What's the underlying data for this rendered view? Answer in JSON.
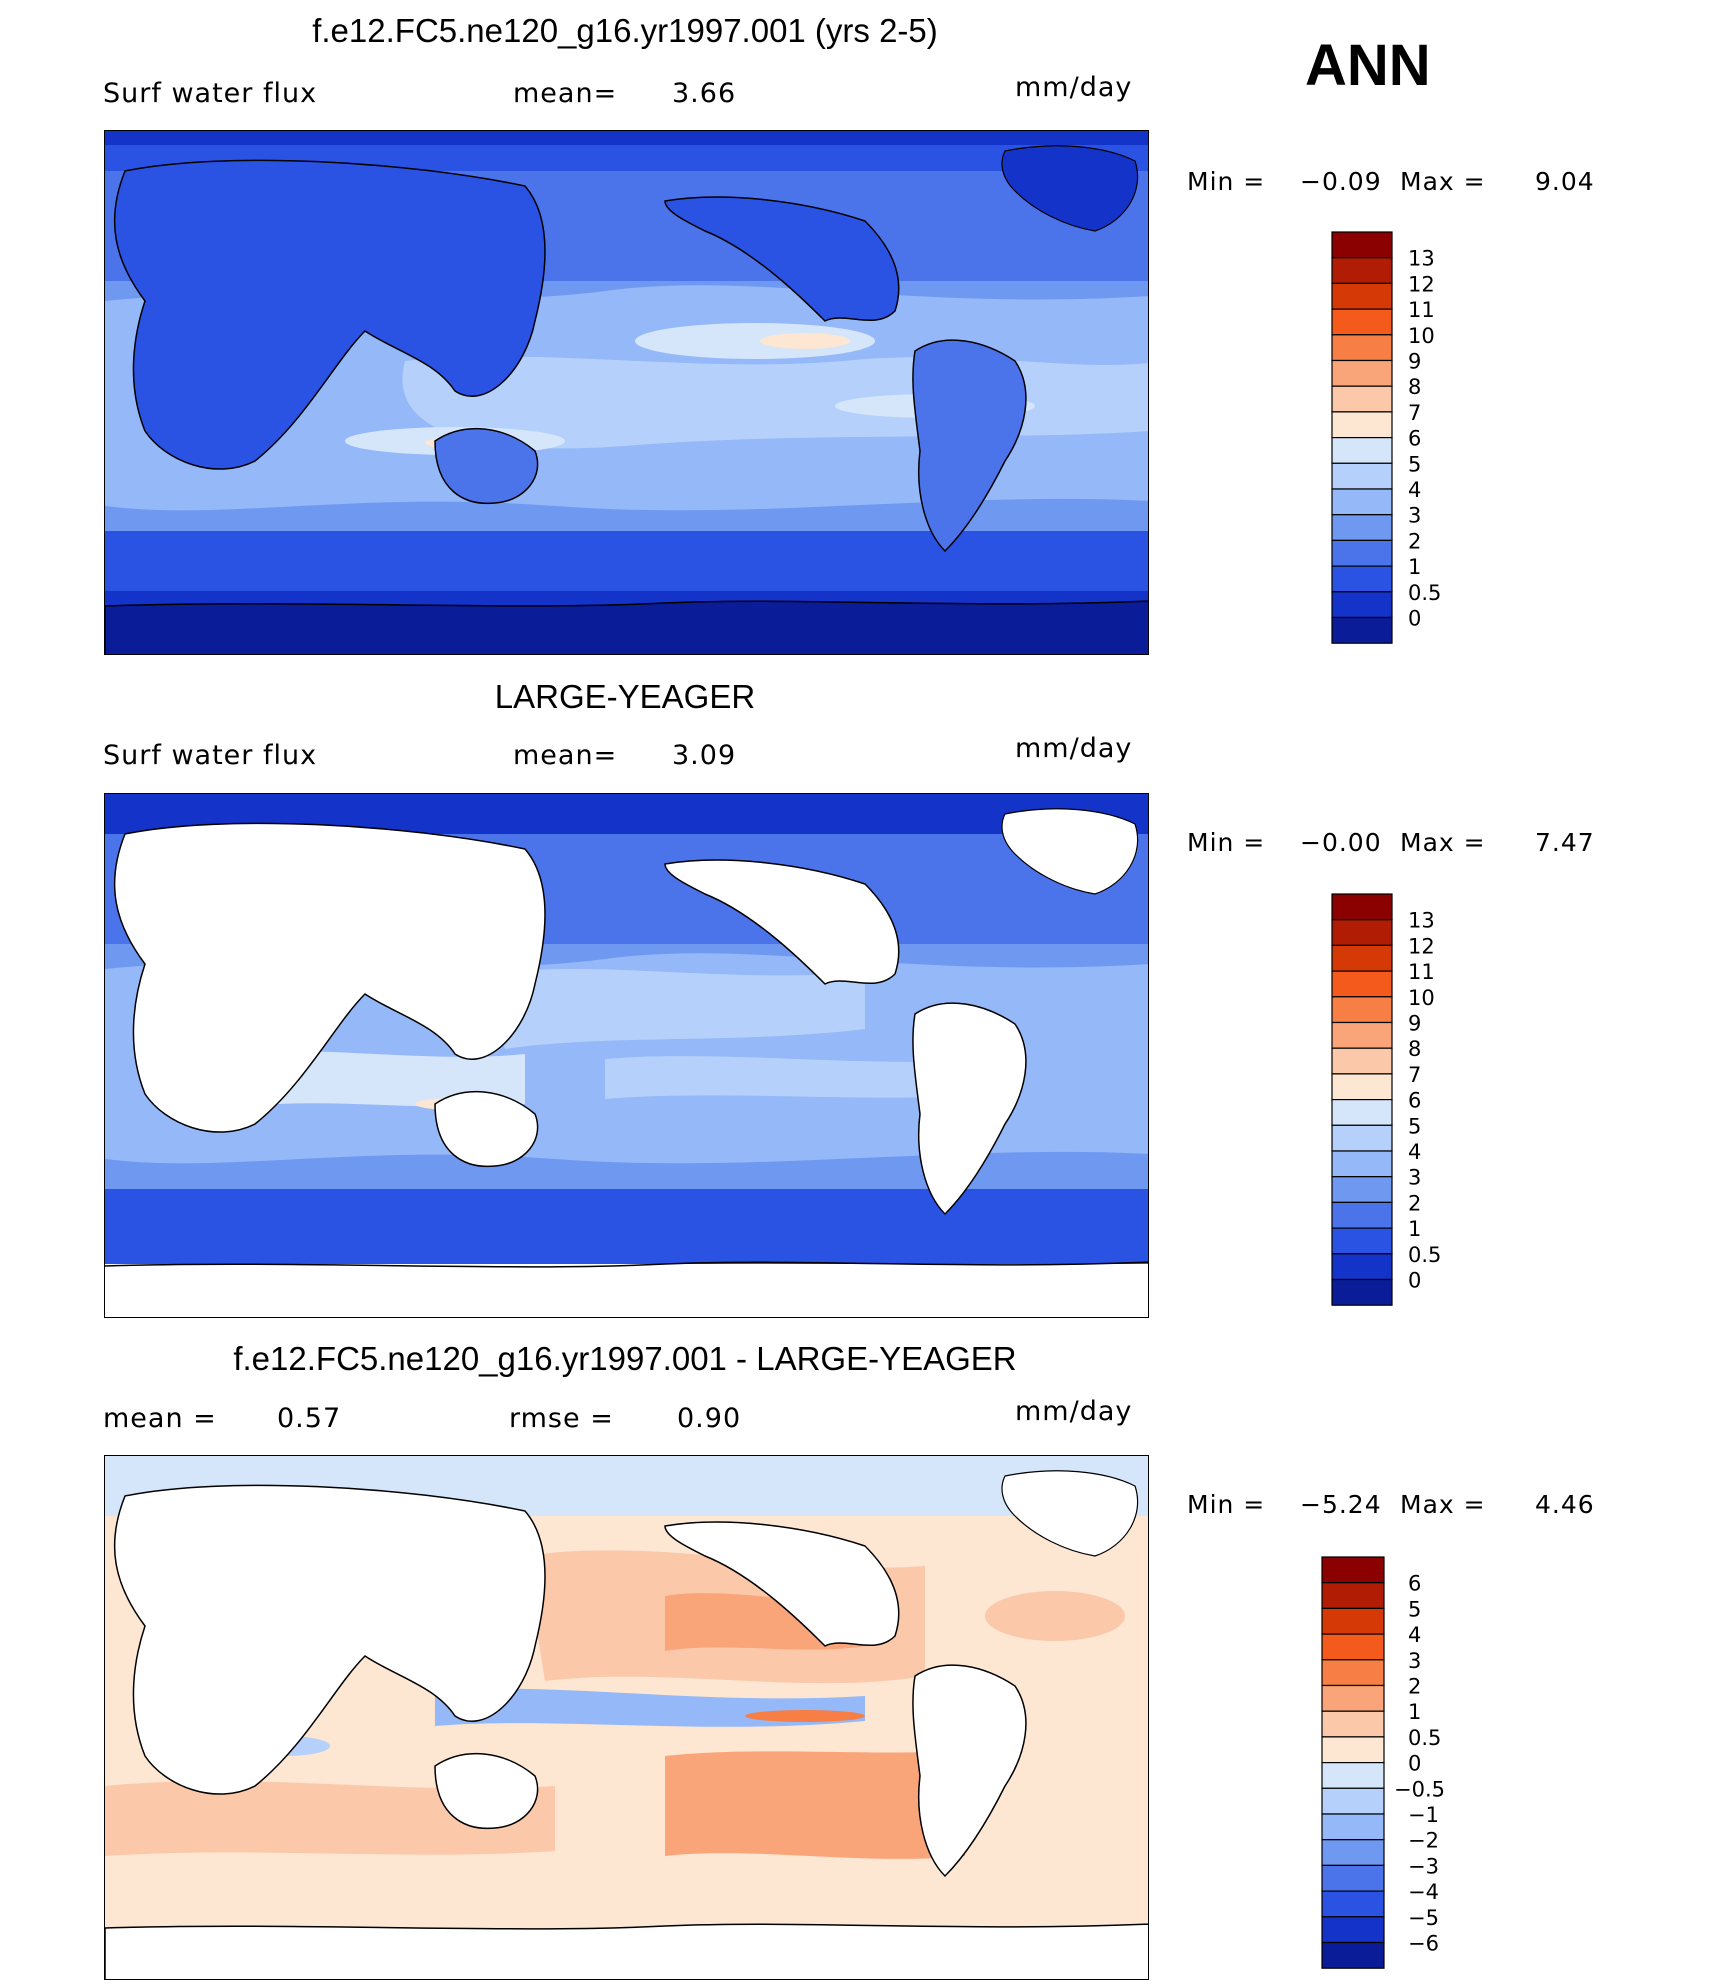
{
  "season": "ANN",
  "panels": [
    {
      "title": "f.e12.FC5.ne120_g16.yr1997.001 (yrs 2-5)",
      "left_label": "Surf  water  flux",
      "mean_label": "mean=",
      "mean_value": "3.66",
      "units": "mm/day",
      "min_label": "Min  =",
      "min_value": "−0.09",
      "max_label": "Max  =",
      "max_value": "9.04",
      "colorbar_labels": [
        "13",
        "12",
        "11",
        "10",
        "9",
        "8",
        "7",
        "6",
        "5",
        "4",
        "3",
        "2",
        "1",
        "0.5",
        "0"
      ],
      "colorbar_colors": [
        "#8b0000",
        "#b01d04",
        "#d53a06",
        "#f45a1c",
        "#f77e45",
        "#f9a479",
        "#fbc8aa",
        "#fde6d2",
        "#d5e6fb",
        "#b5d1fb",
        "#94b8f8",
        "#6f98f1",
        "#4b74eb",
        "#2a52e3",
        "#1433c8",
        "#0a1c98"
      ]
    },
    {
      "title": "LARGE-YEAGER",
      "left_label": "Surf  water  flux",
      "mean_label": "mean=",
      "mean_value": "3.09",
      "units": "mm/day",
      "min_label": "Min  =",
      "min_value": "−0.00",
      "max_label": "Max  =",
      "max_value": "7.47",
      "colorbar_labels": [
        "13",
        "12",
        "11",
        "10",
        "9",
        "8",
        "7",
        "6",
        "5",
        "4",
        "3",
        "2",
        "1",
        "0.5",
        "0"
      ],
      "colorbar_colors": [
        "#8b0000",
        "#b01d04",
        "#d53a06",
        "#f45a1c",
        "#f77e45",
        "#f9a479",
        "#fbc8aa",
        "#fde6d2",
        "#d5e6fb",
        "#b5d1fb",
        "#94b8f8",
        "#6f98f1",
        "#4b74eb",
        "#2a52e3",
        "#1433c8",
        "#0a1c98"
      ]
    },
    {
      "title": "f.e12.FC5.ne120_g16.yr1997.001 - LARGE-YEAGER",
      "left_label": "mean  =",
      "mean_label": "rmse  =",
      "left_value": "0.57",
      "mean_value": "0.90",
      "units": "mm/day",
      "min_label": "Min  =",
      "min_value": "−5.24",
      "max_label": "Max  =",
      "max_value": "4.46",
      "colorbar_labels": [
        "6",
        "5",
        "4",
        "3",
        "2",
        "1",
        "0.5",
        "0",
        "−0.5",
        "−1",
        "−2",
        "−3",
        "−4",
        "−5",
        "−6"
      ],
      "colorbar_colors": [
        "#8b0000",
        "#b01d04",
        "#d53a06",
        "#f45a1c",
        "#f77e45",
        "#f9a479",
        "#fbc8aa",
        "#fde6d2",
        "#d5e6fb",
        "#b5d1fb",
        "#94b8f8",
        "#6f98f1",
        "#4b74eb",
        "#2a52e3",
        "#1433c8",
        "#0a1c98"
      ]
    }
  ],
  "colors": {
    "ocean_deep": "#0a1c98",
    "ocean_mid": "#2a52e3",
    "ocean_light": "#94b8f8",
    "ocean_pale": "#d5e6fb",
    "warm_pale": "#fde6d2",
    "warm_mid": "#f9a479",
    "land_blank": "#ffffff"
  }
}
